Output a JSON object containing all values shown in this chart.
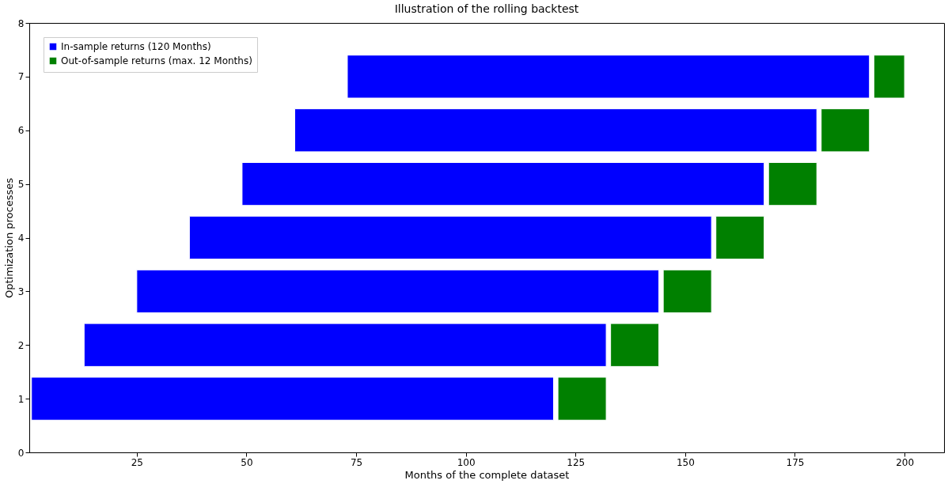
{
  "chart_data": {
    "type": "bar",
    "orientation": "horizontal",
    "title": "Illustration of the rolling backtest",
    "xlabel": "Months of the complete dataset",
    "ylabel": "Optimization processes",
    "x": [
      1,
      2,
      3,
      4,
      5,
      6,
      7
    ],
    "series": [
      {
        "name": "In-sample returns (120 Months)",
        "color": "#0000ff",
        "base": [
          1,
          13,
          25,
          37,
          49,
          61,
          73
        ],
        "values": [
          119,
          119,
          119,
          119,
          119,
          119,
          119
        ]
      },
      {
        "name": "Out-of-sample returns (max. 12 Months)",
        "color": "#008000",
        "base": [
          121,
          133,
          145,
          157,
          169,
          181,
          193
        ],
        "values": [
          11,
          11,
          11,
          11,
          11,
          11,
          7
        ]
      }
    ],
    "xlim": [
      0.5,
      209
    ],
    "xticks": [
      25,
      50,
      75,
      100,
      125,
      150,
      175,
      200
    ],
    "ylim": [
      0,
      8
    ],
    "yticks": [
      0,
      1,
      2,
      3,
      4,
      5,
      6,
      7,
      8
    ],
    "grid": false,
    "legend": "top left"
  }
}
